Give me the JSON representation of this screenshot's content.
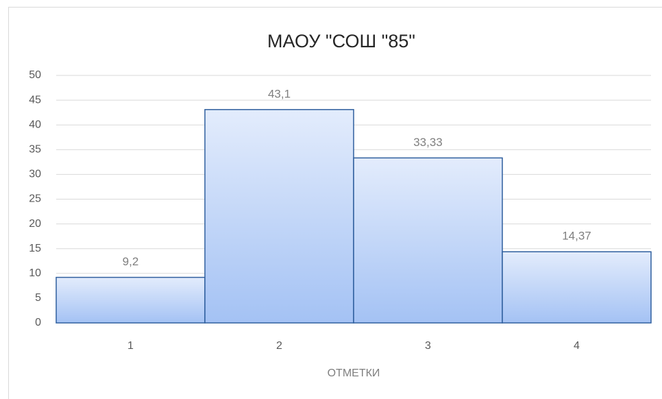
{
  "chart_data": {
    "type": "bar",
    "title": "МАОУ \"СОШ \"85\"",
    "x_label": "ОТМЕТКИ",
    "categories": [
      "1",
      "2",
      "3",
      "4"
    ],
    "values": [
      9.2,
      43.1,
      33.33,
      14.37
    ],
    "value_labels": [
      "9,2",
      "43,1",
      "33,33",
      "14,37"
    ],
    "color": "#a4c2f4",
    "ylim": [
      0,
      50
    ],
    "yticks": [
      0,
      5,
      10,
      15,
      20,
      25,
      30,
      35,
      40,
      45,
      50
    ],
    "grid": true
  }
}
